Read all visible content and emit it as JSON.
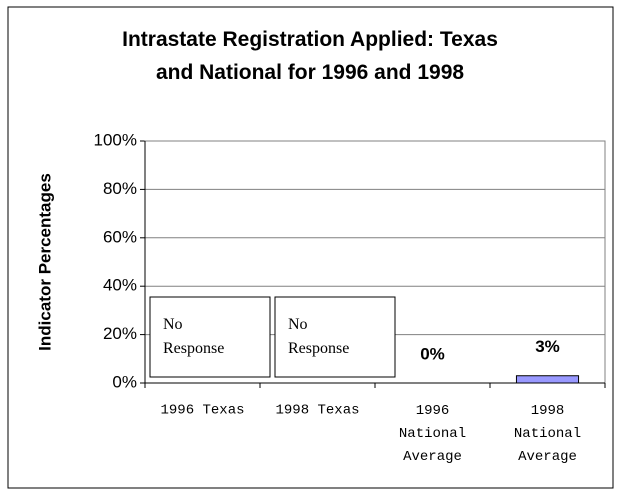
{
  "chart_data": {
    "type": "bar",
    "title": "Intrastate Registration Applied: Texas and National for 1996 and 1998",
    "y_label": "Indicator Percentages",
    "categories": [
      "1996 Texas",
      "1998 Texas",
      "1996 National Average",
      "1998 National Average"
    ],
    "values": [
      null,
      null,
      0,
      3
    ],
    "value_labels": [
      null,
      null,
      "0%",
      "3%"
    ],
    "annotations": [
      "No Response",
      "No Response"
    ],
    "color": "#9999ff",
    "ylim": [
      0,
      100
    ],
    "yticks": [
      {
        "value": 0,
        "label": "0%"
      },
      {
        "value": 20,
        "label": "20%"
      },
      {
        "value": 40,
        "label": "40%"
      },
      {
        "value": 60,
        "label": "60%"
      },
      {
        "value": 80,
        "label": "80%"
      },
      {
        "value": 100,
        "label": "100%"
      }
    ],
    "grid": true
  }
}
